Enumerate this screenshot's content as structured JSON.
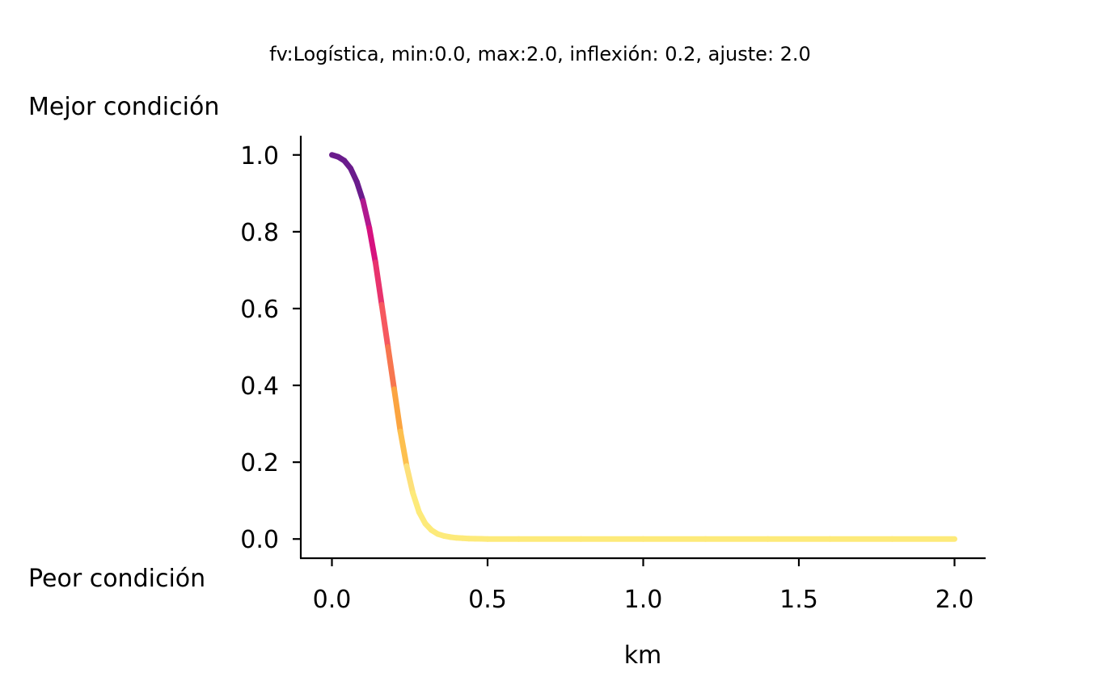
{
  "chart_data": {
    "type": "line",
    "title": "fv:Logística, min:0.0, max:2.0, inflexión: 0.2, ajuste: 2.0",
    "xlabel": "km",
    "ylabel": "",
    "top_label": "Mejor condición",
    "bottom_label": "Peor condición",
    "xlim": [
      -0.1,
      2.1
    ],
    "ylim": [
      -0.05,
      1.05
    ],
    "xticks": [
      0.0,
      0.5,
      1.0,
      1.5,
      2.0
    ],
    "xtick_labels": [
      "0.0",
      "0.5",
      "1.0",
      "1.5",
      "2.0"
    ],
    "yticks": [
      0.0,
      0.2,
      0.4,
      0.6,
      0.8,
      1.0
    ],
    "ytick_labels": [
      "0.0",
      "0.2",
      "0.4",
      "0.6",
      "0.8",
      "1.0"
    ],
    "grid": false,
    "colormap": [
      "#0d0887",
      "#6a00a8",
      "#b12a90",
      "#e16462",
      "#fca636",
      "#f0f921"
    ],
    "line_colors": [
      "#6a1c8c",
      "#b0198f",
      "#d6117f",
      "#e8336d",
      "#f6585f",
      "#f7764f",
      "#fba440",
      "#fdc04f",
      "#fde07a",
      "#fdea7a"
    ],
    "series": [
      {
        "x": [
          0.0,
          0.02,
          0.04,
          0.06,
          0.08,
          0.1,
          0.12,
          0.14,
          0.16,
          0.18,
          0.2,
          0.22,
          0.24,
          0.26,
          0.28,
          0.3,
          0.32,
          0.34,
          0.36,
          0.38,
          0.4,
          0.42,
          0.44,
          0.46,
          0.48,
          0.5,
          0.6,
          0.8,
          1.0,
          1.2,
          1.4,
          1.6,
          1.8,
          2.0
        ],
        "values": [
          1.0,
          0.995,
          0.985,
          0.965,
          0.93,
          0.88,
          0.81,
          0.72,
          0.61,
          0.5,
          0.39,
          0.28,
          0.19,
          0.12,
          0.07,
          0.04,
          0.023,
          0.013,
          0.008,
          0.005,
          0.003,
          0.002,
          0.001,
          0.0007,
          0.0004,
          0.0,
          0.0,
          0.0,
          0.0,
          0.0,
          0.0,
          0.0,
          0.0,
          0.0
        ]
      }
    ]
  }
}
